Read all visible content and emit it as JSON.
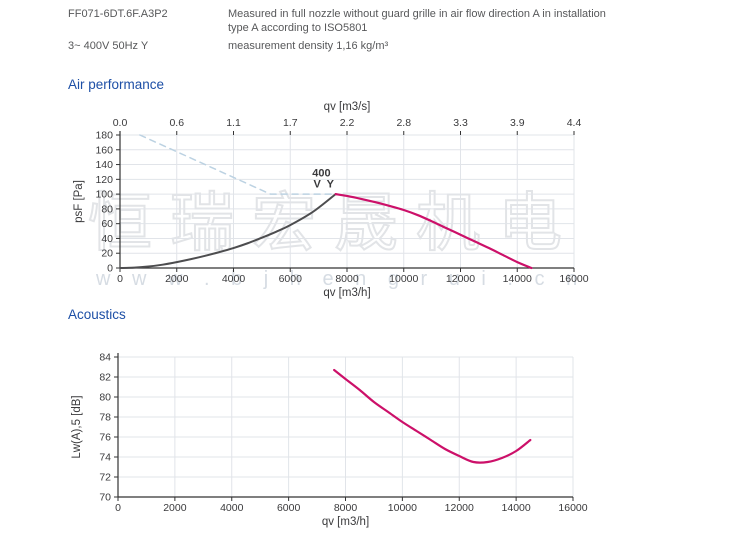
{
  "header": {
    "model": "FF071-6DT.6F.A3P2",
    "desc_line1": "Measured in full nozzle without guard grille in air flow direction A in installation",
    "desc_line2": "type A according to ISO5801",
    "power": "3~ 400V 50Hz Y",
    "density": "measurement density 1,16 kg/m³"
  },
  "sections": {
    "air": "Air performance",
    "acoustics": "Acoustics"
  },
  "watermark": {
    "cjk": "恒瑞宏晟机电",
    "url": "w w w . b j h e n g r u i . c n"
  },
  "colors": {
    "accent_pink": "#cc1069",
    "curve_gray": "#4d4d4f",
    "dashed_blue": "#bcd2e2",
    "title_blue": "#1d4fa6",
    "text_gray": "#57585a",
    "grid": "#e1e4e9",
    "axis": "#333333",
    "tick_text": "#3a3a3c"
  },
  "chart_data": [
    {
      "type": "line",
      "title": "Air performance",
      "grid": true,
      "x_bottom": {
        "label": "qv [m3/h]",
        "range": [
          0,
          16000
        ],
        "ticks": [
          0,
          2000,
          4000,
          6000,
          8000,
          10000,
          12000,
          14000,
          16000
        ]
      },
      "x_top": {
        "label": "qv [m3/s]",
        "ticks": [
          "0.0",
          "0.6",
          "1.1",
          "1.7",
          "2.2",
          "2.8",
          "3.3",
          "3.9",
          "4.4"
        ]
      },
      "y": {
        "label": "psF [Pa]",
        "range": [
          0,
          180
        ],
        "ticks": [
          0,
          20,
          40,
          60,
          80,
          100,
          120,
          140,
          160,
          180
        ]
      },
      "series": [
        {
          "name": "system-resistance-curve",
          "color_key": "curve_gray",
          "style": "solid",
          "width": 2,
          "points": [
            [
              0,
              0
            ],
            [
              500,
              0.5
            ],
            [
              1000,
              2
            ],
            [
              1500,
              4.5
            ],
            [
              2000,
              8
            ],
            [
              2500,
              12
            ],
            [
              3000,
              16.5
            ],
            [
              3500,
              21.5
            ],
            [
              4000,
              27
            ],
            [
              4500,
              33.5
            ],
            [
              5000,
              41
            ],
            [
              5500,
              49
            ],
            [
              6000,
              58
            ],
            [
              6800,
              76
            ],
            [
              7600,
              100
            ]
          ]
        },
        {
          "name": "fan-curve-400V",
          "color_key": "accent_pink",
          "style": "solid",
          "width": 2.2,
          "points": [
            [
              7600,
              100
            ],
            [
              8000,
              97.5
            ],
            [
              8500,
              93.5
            ],
            [
              9000,
              89
            ],
            [
              9500,
              84
            ],
            [
              10000,
              78.5
            ],
            [
              10500,
              71.5
            ],
            [
              11000,
              63
            ],
            [
              11500,
              54
            ],
            [
              12000,
              45
            ],
            [
              12500,
              36
            ],
            [
              13000,
              27
            ],
            [
              13500,
              17.5
            ],
            [
              14000,
              8
            ],
            [
              14500,
              0
            ]
          ]
        },
        {
          "name": "max-pressure-limit-dashed",
          "color_key": "dashed_blue",
          "style": "dashed",
          "width": 1.5,
          "points": [
            [
              700,
              180
            ],
            [
              5300,
              100
            ],
            [
              7600,
              100
            ]
          ]
        }
      ],
      "annotation": {
        "line1": "400",
        "line2": "V Y",
        "x": 7100,
        "y": 124
      }
    },
    {
      "type": "line",
      "title": "Acoustics",
      "grid": true,
      "x_bottom": {
        "label": "qv [m3/h]",
        "range": [
          0,
          16000
        ],
        "ticks": [
          0,
          2000,
          4000,
          6000,
          8000,
          10000,
          12000,
          14000,
          16000
        ]
      },
      "y": {
        "label": "Lw(A),5 [dB]",
        "range": [
          70,
          84
        ],
        "ticks": [
          70,
          72,
          74,
          76,
          78,
          80,
          82,
          84
        ]
      },
      "series": [
        {
          "name": "sound-power-curve",
          "color_key": "accent_pink",
          "style": "solid",
          "width": 2.2,
          "points": [
            [
              7600,
              82.7
            ],
            [
              8000,
              81.8
            ],
            [
              8500,
              80.7
            ],
            [
              9000,
              79.5
            ],
            [
              9500,
              78.5
            ],
            [
              10000,
              77.5
            ],
            [
              10500,
              76.6
            ],
            [
              11000,
              75.7
            ],
            [
              11500,
              74.8
            ],
            [
              12000,
              74.1
            ],
            [
              12500,
              73.5
            ],
            [
              13000,
              73.5
            ],
            [
              13500,
              73.9
            ],
            [
              14000,
              74.6
            ],
            [
              14500,
              75.7
            ]
          ]
        }
      ]
    }
  ]
}
